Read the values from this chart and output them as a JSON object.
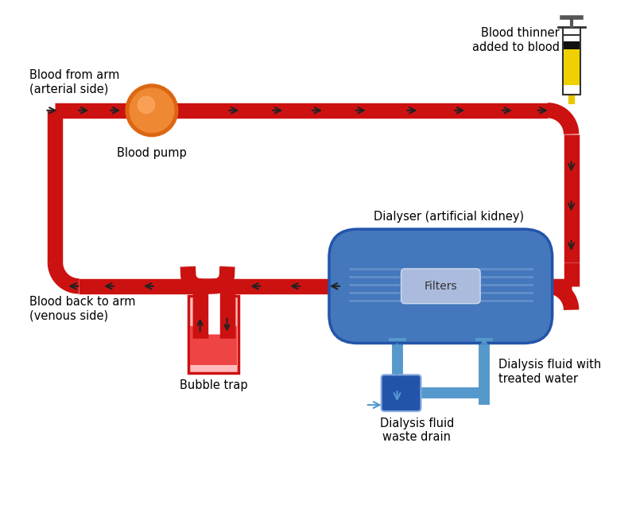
{
  "bg_color": "#ffffff",
  "blood_color": "#cc1111",
  "blue_color": "#4477bb",
  "blue_dark": "#2255aa",
  "blue_light": "#88aadd",
  "blue_arrow": "#5599cc",
  "orange_outer": "#dd6611",
  "orange_inner": "#ee8833",
  "orange_highlight": "#ffaa66",
  "labels": {
    "blood_from_arm": "Blood from arm\n(arterial side)",
    "blood_pump": "Blood pump",
    "blood_thinner": "Blood thinner\nadded to blood",
    "dialyser": "Dialyser (artificial kidney)",
    "filters": "Filters",
    "blood_back": "Blood back to arm\n(venous side)",
    "bubble_trap": "Bubble trap",
    "dialysis_fluid_with": "Dialysis fluid with\ntreated water",
    "dialysis_waste": "Dialysis fluid\nwaste drain"
  },
  "tube_lw": 14,
  "blue_lw": 10
}
